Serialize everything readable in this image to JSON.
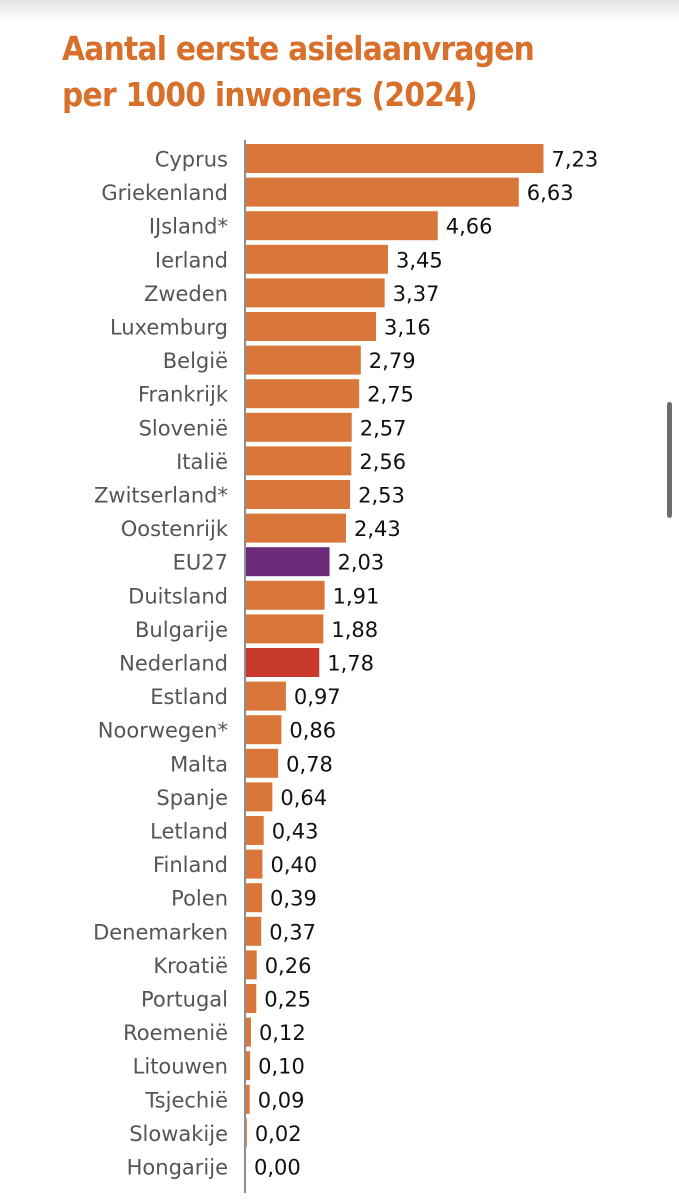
{
  "title": "Aantal eerste asielaanvragen per 1000 inwoners (2024)",
  "colors": {
    "default": "#d9773a",
    "eu": "#6b2a7a",
    "highlight": "#c83b2c",
    "title": "#d86f2a"
  },
  "chart_data": {
    "type": "bar",
    "orientation": "horizontal",
    "title": "Aantal eerste asielaanvragen per 1000 inwoners (2024)",
    "xlabel": "",
    "ylabel": "",
    "xlim": [
      0,
      7.23
    ],
    "categories": [
      "Cyprus",
      "Griekenland",
      "IJsland*",
      "Ierland",
      "Zweden",
      "Luxemburg",
      "België",
      "Frankrijk",
      "Slovenië",
      "Italië",
      "Zwitserland*",
      "Oostenrijk",
      "EU27",
      "Duitsland",
      "Bulgarije",
      "Nederland",
      "Estland",
      "Noorwegen*",
      "Malta",
      "Spanje",
      "Letland",
      "Finland",
      "Polen",
      "Denemarken",
      "Kroatië",
      "Portugal",
      "Roemenië",
      "Litouwen",
      "Tsjechië",
      "Slowakije",
      "Hongarije"
    ],
    "values": [
      7.23,
      6.63,
      4.66,
      3.45,
      3.37,
      3.16,
      2.79,
      2.75,
      2.57,
      2.56,
      2.53,
      2.43,
      2.03,
      1.91,
      1.88,
      1.78,
      0.97,
      0.86,
      0.78,
      0.64,
      0.43,
      0.4,
      0.39,
      0.37,
      0.26,
      0.25,
      0.12,
      0.1,
      0.09,
      0.02,
      0.0
    ],
    "value_labels": [
      "7,23",
      "6,63",
      "4,66",
      "3,45",
      "3,37",
      "3,16",
      "2,79",
      "2,75",
      "2,57",
      "2,56",
      "2,53",
      "2,43",
      "2,03",
      "1,91",
      "1,88",
      "1,78",
      "0,97",
      "0,86",
      "0,78",
      "0,64",
      "0,43",
      "0,40",
      "0,39",
      "0,37",
      "0,26",
      "0,25",
      "0,12",
      "0,10",
      "0,09",
      "0,02",
      "0,00"
    ],
    "highlights": {
      "EU27": "eu",
      "Nederland": "highlight"
    },
    "grid": false,
    "legend": "none"
  }
}
